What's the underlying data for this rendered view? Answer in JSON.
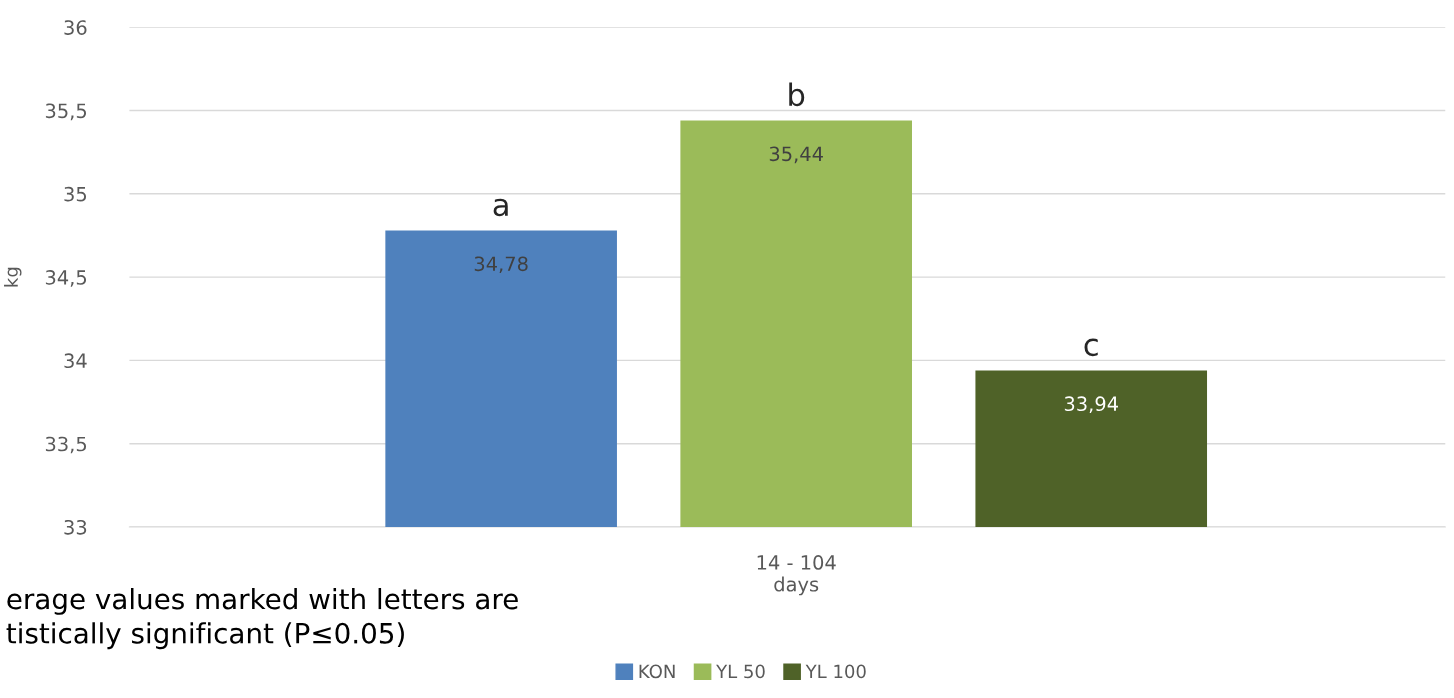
{
  "chart_data": {
    "type": "bar",
    "categories": [
      "14 - 104\ndays"
    ],
    "series": [
      {
        "name": "KON",
        "color": "#4f81bd",
        "values": [
          34.78
        ],
        "value_labels": [
          "34,78"
        ]
      },
      {
        "name": "YL 50",
        "color": "#9bbb59",
        "values": [
          35.44
        ],
        "value_labels": [
          "35,44"
        ]
      },
      {
        "name": "YL 100",
        "color": "#4f6228",
        "values": [
          33.94
        ],
        "value_labels": [
          "33,94"
        ]
      }
    ],
    "ylabel": "kg",
    "ylim": [
      33,
      36
    ],
    "yticks": [
      33,
      {
        "value": 33.5,
        "label": "33,5"
      },
      34,
      {
        "value": 34.5,
        "label": "34,5"
      },
      35,
      {
        "value": 35.5,
        "label": "35,5"
      },
      36
    ],
    "grid": "y",
    "legend": "bottom",
    "annotations": [
      "a",
      "b",
      "c",
      "erage values marked with letters are\ntistically significant (P≤0.05)"
    ]
  }
}
